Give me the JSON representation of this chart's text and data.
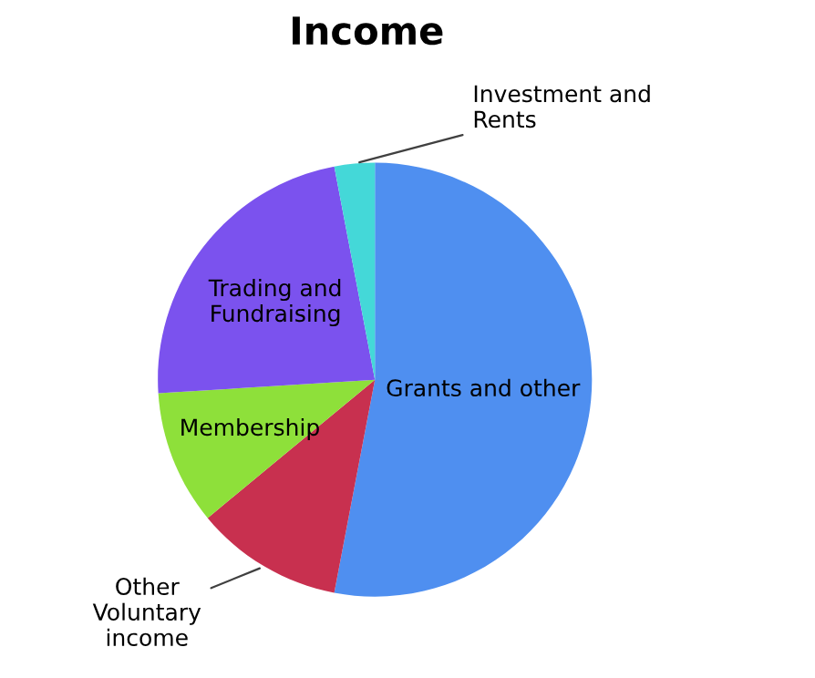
{
  "chart_data": {
    "type": "pie",
    "title": "Income",
    "categories": [
      "Grants and other",
      "Other\nVoluntary\nincome",
      "Membership",
      "Trading and\nFundraising",
      "Investment and\nRents"
    ],
    "values": [
      53,
      11,
      10,
      23,
      3
    ],
    "colors": [
      "#4f8ff0",
      "#c8304f",
      "#8ee03a",
      "#7b52ee",
      "#44d8d8"
    ],
    "legend": false
  }
}
